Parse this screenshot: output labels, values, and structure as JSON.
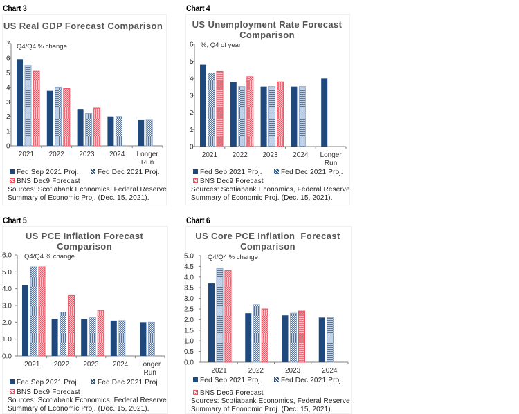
{
  "colors": {
    "sep": "#1f497d",
    "dec": "#1f497d",
    "bns": "#f05060",
    "axis": "#808080"
  },
  "chart_data": [
    {
      "label": "Chart 3",
      "type": "bar",
      "title": "US Real GDP Forecast Comparison",
      "title_lines": [
        "US Real GDP Forecast Comparison"
      ],
      "ylabel": "Q4/Q4 % change",
      "ylim": [
        0,
        7
      ],
      "yticks": [
        "0",
        "1",
        "2",
        "3",
        "4",
        "5",
        "6",
        "7"
      ],
      "categories": [
        "2021",
        "2022",
        "2023",
        "2024",
        "Longer Run"
      ],
      "category_lines": [
        [
          "2021"
        ],
        [
          "2022"
        ],
        [
          "2023"
        ],
        [
          "2024"
        ],
        [
          "Longer",
          "Run"
        ]
      ],
      "series": [
        {
          "name": "Fed Sep 2021 Proj.",
          "values": [
            5.9,
            3.8,
            2.5,
            2.0,
            1.8
          ]
        },
        {
          "name": "Fed Dec 2021 Proj.",
          "values": [
            5.5,
            4.0,
            2.2,
            2.0,
            1.8
          ]
        },
        {
          "name": "BNS Dec9 Forecast",
          "values": [
            5.1,
            3.9,
            2.6,
            null,
            null
          ]
        }
      ],
      "legend": [
        "Fed Sep 2021 Proj.",
        "Fed Dec 2021 Proj.",
        "BNS Dec9 Forecast"
      ],
      "source_lines": [
        "Sources: Scotiabank Economics, Federal Reserve",
        "Summary of Economic Proj. (Dec. 15, 2021)."
      ]
    },
    {
      "label": "Chart 4",
      "type": "bar",
      "title": "US Unemployment Rate Forecast Comparison",
      "title_lines": [
        "US Unemployment Rate Forecast",
        "Comparison"
      ],
      "ylabel": "%, Q4 of year",
      "ylim": [
        0,
        6
      ],
      "yticks": [
        "0",
        "1",
        "2",
        "3",
        "4",
        "5",
        "6"
      ],
      "categories": [
        "2021",
        "2022",
        "2023",
        "2024",
        "Longer Run"
      ],
      "category_lines": [
        [
          "2021"
        ],
        [
          "2022"
        ],
        [
          "2023"
        ],
        [
          "2024"
        ],
        [
          "Longer",
          "Run"
        ]
      ],
      "series": [
        {
          "name": "Fed Sep 2021 Proj.",
          "values": [
            4.8,
            3.8,
            3.5,
            3.5,
            4.0
          ]
        },
        {
          "name": "Fed Dec 2021 Proj.",
          "values": [
            4.3,
            3.5,
            3.5,
            3.5,
            null
          ]
        },
        {
          "name": "BNS Dec9 Forecast",
          "values": [
            4.4,
            4.1,
            3.8,
            null,
            null
          ]
        }
      ],
      "legend": [
        "Fed Sep 2021 Proj.",
        "Fed Dec 2021 Proj.",
        "BNS Dec9 Forecast"
      ],
      "source_lines": [
        "Sources: Scotiabank Economics, Federal Reserve",
        "Summary of Economic Proj. (Dec. 15, 2021)."
      ]
    },
    {
      "label": "Chart 5",
      "type": "bar",
      "title": "US PCE Inflation Forecast Comparison",
      "title_lines": [
        "US PCE Inflation Forecast",
        "Comparison"
      ],
      "ylabel": "Q4/Q4 % change",
      "ylim": [
        0,
        6
      ],
      "yticks": [
        "0.0",
        "1.0",
        "2.0",
        "3.0",
        "4.0",
        "5.0",
        "6.0"
      ],
      "categories": [
        "2021",
        "2022",
        "2023",
        "2024",
        "Longer Run"
      ],
      "category_lines": [
        [
          "2021"
        ],
        [
          "2022"
        ],
        [
          "2023"
        ],
        [
          "2024"
        ],
        [
          "Longer",
          "Run"
        ]
      ],
      "series": [
        {
          "name": "Fed Sep 2021 Proj.",
          "values": [
            4.2,
            2.2,
            2.2,
            2.1,
            2.0
          ]
        },
        {
          "name": "Fed Dec 2021 Proj.",
          "values": [
            5.3,
            2.6,
            2.3,
            2.1,
            2.0
          ]
        },
        {
          "name": "BNS Dec9 Forecast",
          "values": [
            5.3,
            3.6,
            2.7,
            null,
            null
          ]
        }
      ],
      "legend": [
        "Fed Sep 2021 Proj.",
        "Fed Dec 2021 Proj.",
        "BNS Dec9 Forecast"
      ],
      "source_lines": [
        "Sources: Scotiabank Economics, Federal Reserve",
        "Summary of Economic Proj. (Dec. 15, 2021)."
      ]
    },
    {
      "label": "Chart 6",
      "type": "bar",
      "title": "US Core PCE Inflation Forecast Comparison",
      "title_lines": [
        "US Core PCE Inflation  Forecast",
        "Comparison"
      ],
      "ylabel": "Q4/Q4 % change",
      "ylim": [
        0,
        5
      ],
      "yticks": [
        "0.0",
        "0.5",
        "1.0",
        "1.5",
        "2.0",
        "2.5",
        "3.0",
        "3.5",
        "4.0",
        "4.5",
        "5.0"
      ],
      "categories": [
        "2021",
        "2022",
        "2023",
        "2024"
      ],
      "category_lines": [
        [
          "2021"
        ],
        [
          "2022"
        ],
        [
          "2023"
        ],
        [
          "2024"
        ]
      ],
      "series": [
        {
          "name": "Fed Sep 2021 Proj.",
          "values": [
            3.7,
            2.3,
            2.2,
            2.1
          ]
        },
        {
          "name": "Fed Dec 2021 Proj.",
          "values": [
            4.4,
            2.7,
            2.3,
            2.1
          ]
        },
        {
          "name": "BNS Dec9 Forecast",
          "values": [
            4.3,
            2.5,
            2.4,
            null
          ]
        }
      ],
      "legend": [
        "Fed Sep 2021 Proj.",
        "Fed Dec 2021 Proj.",
        "BNS Dec9 Forecast"
      ],
      "source_lines": [
        "Sources: Scotiabank Economics, Federal Reserve",
        "Summary of Economic Proj. (Dec. 15, 2021)."
      ]
    }
  ]
}
